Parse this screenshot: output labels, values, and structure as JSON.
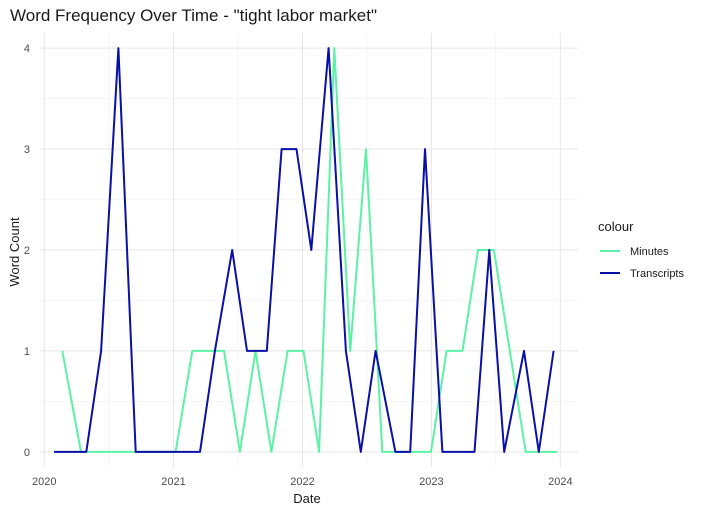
{
  "chart_data": {
    "type": "line",
    "title": "Word Frequency Over Time - \"tight labor market\"",
    "xlabel": "Date",
    "ylabel": "Word Count",
    "xlim": [
      "2019-12-20",
      "2024-02-20"
    ],
    "ylim": [
      -0.15,
      4.15
    ],
    "x_ticks": [
      {
        "label": "2020",
        "date": "2020-01-01"
      },
      {
        "label": "2021",
        "date": "2021-01-01"
      },
      {
        "label": "2022",
        "date": "2022-01-01"
      },
      {
        "label": "2023",
        "date": "2023-01-01"
      },
      {
        "label": "2024",
        "date": "2024-01-01"
      }
    ],
    "y_ticks": [
      0,
      1,
      2,
      3,
      4
    ],
    "grid": true,
    "legend": {
      "title": "colour",
      "position": "right"
    },
    "series": [
      {
        "name": "Minutes",
        "color": "#5CF2A6",
        "points": [
          [
            "2020-02-21",
            1
          ],
          [
            "2020-04-14",
            0
          ],
          [
            "2020-05-29",
            0
          ],
          [
            "2020-07-13",
            0
          ],
          [
            "2020-08-27",
            0
          ],
          [
            "2020-10-10",
            0
          ],
          [
            "2020-11-24",
            0
          ],
          [
            "2021-01-07",
            0
          ],
          [
            "2021-02-23",
            1
          ],
          [
            "2021-04-09",
            1
          ],
          [
            "2021-05-24",
            1
          ],
          [
            "2021-07-08",
            0
          ],
          [
            "2021-08-21",
            1
          ],
          [
            "2021-10-05",
            0
          ],
          [
            "2021-11-20",
            1
          ],
          [
            "2022-01-04",
            1
          ],
          [
            "2022-02-17",
            0
          ],
          [
            "2022-04-01",
            4
          ],
          [
            "2022-05-16",
            1
          ],
          [
            "2022-06-30",
            3
          ],
          [
            "2022-08-15",
            0
          ],
          [
            "2022-10-01",
            0
          ],
          [
            "2022-11-15",
            0
          ],
          [
            "2022-12-31",
            0
          ],
          [
            "2023-02-13",
            1
          ],
          [
            "2023-03-30",
            1
          ],
          [
            "2023-05-13",
            2
          ],
          [
            "2023-06-27",
            2
          ],
          [
            "2023-08-11",
            1
          ],
          [
            "2023-09-25",
            0
          ],
          [
            "2023-11-09",
            0
          ],
          [
            "2023-12-23",
            0
          ]
        ]
      },
      {
        "name": "Transcripts",
        "color": "#0A10A6",
        "points": [
          [
            "2020-01-29",
            0
          ],
          [
            "2020-03-17",
            0
          ],
          [
            "2020-04-29",
            0
          ],
          [
            "2020-06-10",
            1
          ],
          [
            "2020-07-29",
            4
          ],
          [
            "2020-09-16",
            0
          ],
          [
            "2020-11-05",
            0
          ],
          [
            "2020-12-16",
            0
          ],
          [
            "2021-01-27",
            0
          ],
          [
            "2021-03-17",
            0
          ],
          [
            "2021-04-28",
            1
          ],
          [
            "2021-06-16",
            2
          ],
          [
            "2021-07-28",
            1
          ],
          [
            "2021-09-22",
            1
          ],
          [
            "2021-11-03",
            3
          ],
          [
            "2021-12-15",
            3
          ],
          [
            "2022-01-26",
            2
          ],
          [
            "2022-03-16",
            4
          ],
          [
            "2022-05-04",
            1
          ],
          [
            "2022-06-15",
            0
          ],
          [
            "2022-07-27",
            1
          ],
          [
            "2022-09-21",
            0
          ],
          [
            "2022-11-02",
            0
          ],
          [
            "2022-12-14",
            3
          ],
          [
            "2023-02-01",
            0
          ],
          [
            "2023-03-22",
            0
          ],
          [
            "2023-05-03",
            0
          ],
          [
            "2023-06-14",
            2
          ],
          [
            "2023-07-26",
            0
          ],
          [
            "2023-09-20",
            1
          ],
          [
            "2023-11-01",
            0
          ],
          [
            "2023-12-13",
            1
          ]
        ]
      }
    ]
  }
}
